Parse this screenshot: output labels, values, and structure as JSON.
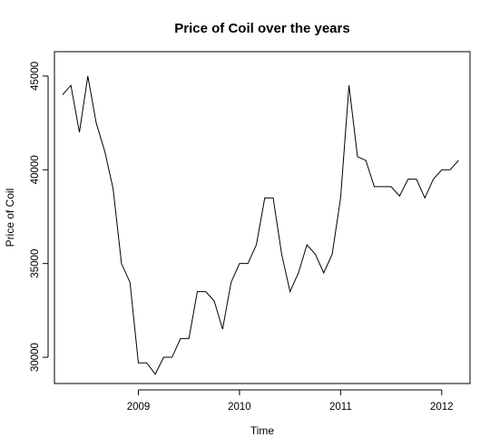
{
  "chart_data": {
    "type": "line",
    "title": "Price of Coil over the years",
    "xlabel": "Time",
    "ylabel": "Price of Coil",
    "xlim": [
      2008.17,
      2012.28
    ],
    "ylim": [
      28600,
      46300
    ],
    "grid": false,
    "x_ticks": [
      2009,
      2010,
      2011,
      2012
    ],
    "x_tick_labels": [
      "2009",
      "2010",
      "2011",
      "2012"
    ],
    "y_ticks": [
      30000,
      35000,
      40000,
      45000
    ],
    "y_tick_labels": [
      "30000",
      "35000",
      "40000",
      "45000"
    ],
    "line_color": "#000000",
    "series": [
      {
        "x": [
          2008.25,
          2008.333,
          2008.417,
          2008.5,
          2008.583,
          2008.667,
          2008.75,
          2008.833,
          2008.917,
          2009.0,
          2009.083,
          2009.167,
          2009.25,
          2009.333,
          2009.417,
          2009.5,
          2009.583,
          2009.667,
          2009.75,
          2009.833,
          2009.917,
          2010.0,
          2010.083,
          2010.167,
          2010.25,
          2010.333,
          2010.417,
          2010.5,
          2010.583,
          2010.667,
          2010.75,
          2010.833,
          2010.917,
          2011.0,
          2011.083,
          2011.167,
          2011.25,
          2011.333,
          2011.417,
          2011.5,
          2011.583,
          2011.667,
          2011.75,
          2011.833,
          2011.917,
          2012.0,
          2012.083,
          2012.167
        ],
        "y": [
          44000,
          44500,
          42000,
          45000,
          42500,
          41000,
          39000,
          35000,
          34000,
          29700,
          29700,
          29100,
          30000,
          30000,
          31000,
          31000,
          33500,
          33500,
          33000,
          31500,
          34000,
          35000,
          35000,
          36000,
          38500,
          38500,
          35500,
          33500,
          34500,
          36000,
          35500,
          34500,
          35500,
          38500,
          44500,
          40700,
          40500,
          39100,
          39100,
          39100,
          38600,
          39500,
          39500,
          38500,
          39500,
          40000,
          40000,
          40500
        ]
      }
    ]
  }
}
